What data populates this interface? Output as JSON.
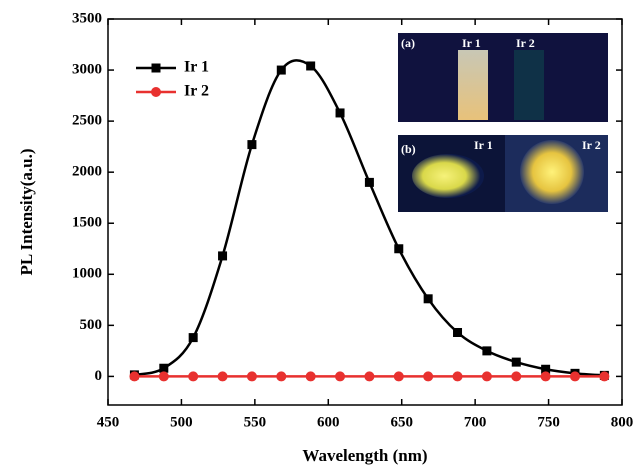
{
  "chart_data": {
    "type": "line",
    "x_label": "Wavelength (nm)",
    "y_label": "PL Intensity(a.u.)",
    "xlim": [
      450,
      800
    ],
    "xticks": [
      450,
      500,
      550,
      600,
      650,
      700,
      750,
      800
    ],
    "ylim": [
      -280,
      3500
    ],
    "yticks": [
      0,
      500,
      1000,
      1500,
      2000,
      2500,
      3000,
      3500
    ],
    "legend": "upper left",
    "x": [
      468,
      488,
      508,
      528,
      548,
      568,
      588,
      608,
      628,
      648,
      668,
      688,
      708,
      728,
      748,
      768,
      788
    ],
    "series": [
      {
        "name": "Ir 1",
        "color": "#000000",
        "marker": "square",
        "values": [
          15,
          80,
          380,
          1180,
          2270,
          3000,
          3040,
          2580,
          1900,
          1250,
          760,
          430,
          250,
          140,
          70,
          30,
          10
        ]
      },
      {
        "name": "Ir 2",
        "color": "#e8312f",
        "marker": "circle",
        "values": [
          0,
          0,
          0,
          0,
          0,
          0,
          0,
          0,
          0,
          0,
          0,
          0,
          0,
          0,
          0,
          0,
          0
        ]
      }
    ],
    "insets": [
      {
        "label": "(a)",
        "samples": [
          "Ir 1",
          "Ir 2"
        ]
      },
      {
        "label": "(b)",
        "samples": [
          "Ir 1",
          "Ir 2"
        ]
      }
    ]
  }
}
